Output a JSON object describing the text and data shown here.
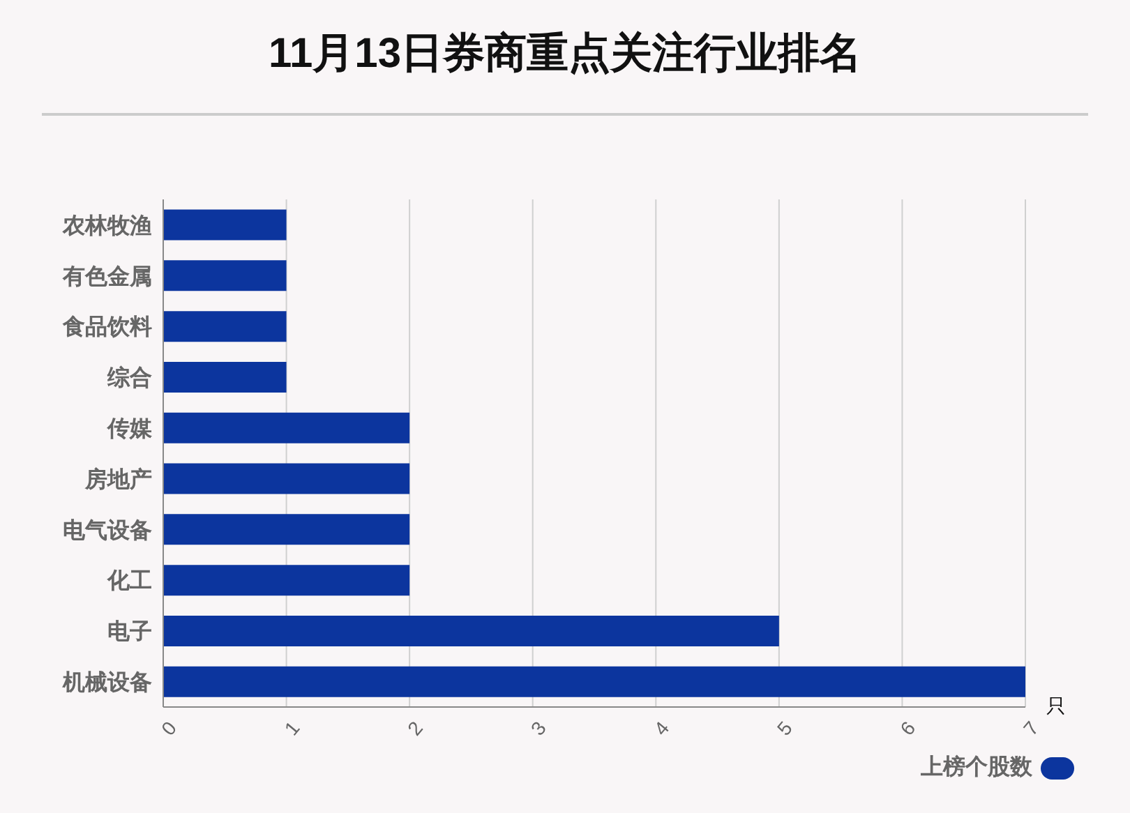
{
  "chart_data": {
    "type": "bar",
    "orientation": "horizontal",
    "title": "11月13日券商重点关注行业排名",
    "xlabel": "只",
    "categories": [
      "农林牧渔",
      "有色金属",
      "食品饮料",
      "综合",
      "传媒",
      "房地产",
      "电气设备",
      "化工",
      "电子",
      "机械设备"
    ],
    "series": [
      {
        "name": "上榜个股数",
        "color": "#0c359e",
        "values": [
          1,
          1,
          1,
          1,
          2,
          2,
          2,
          2,
          5,
          7
        ]
      }
    ],
    "xlim": [
      0,
      7
    ],
    "xticks": [
      0,
      1,
      2,
      3,
      4,
      5,
      6,
      7
    ],
    "grid": "x",
    "legend": "bottom right"
  }
}
